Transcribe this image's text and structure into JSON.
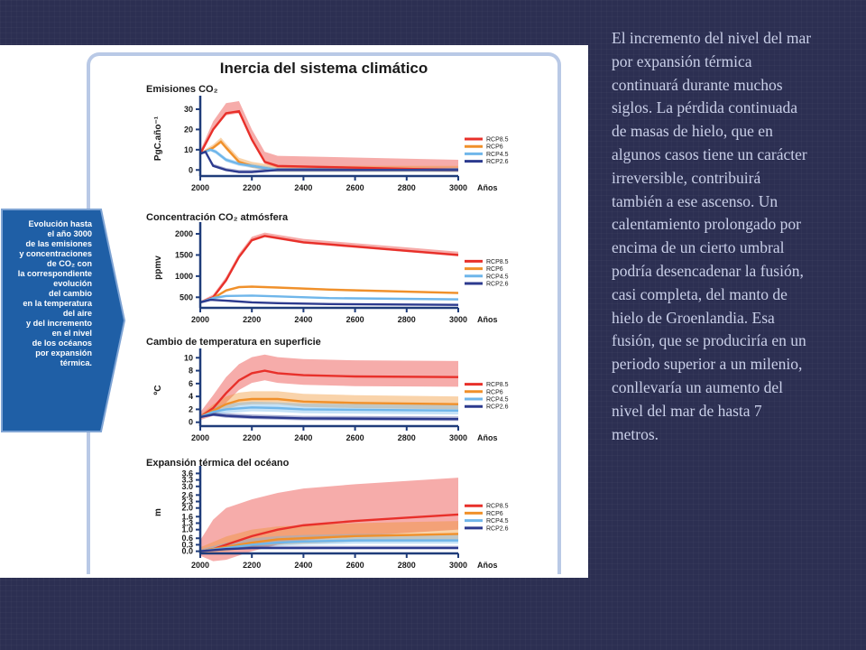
{
  "figure": {
    "title": "Inercia del sistema climático",
    "side_text": "Evolución hasta\nel año 3000\nde las emisiones\ny concentraciones\nde CO₂ con\nla correspondiente\nevolución\ndel cambio\nen la temperatura\ndel aire\ny del incremento\nen el nivel\nde los océanos\npor expansión\ntérmica."
  },
  "caption": "El incremento del nivel del mar por expansión térmica continuará durante muchos siglos. La pérdida continuada de masas de hielo, que en algunos casos tiene un carácter irreversible, contribuirá también a ese ascenso. Un calentamiento prolongado por encima de un cierto umbral podría desencadenar la fusión, casi completa, del manto de hielo de Groenlandia. Esa fusión, que se produciría en un periodo superior a un milenio, conllevaría un aumento del nivel del mar de hasta 7 metros.",
  "colors": {
    "RCP8.5": "#e8302a",
    "RCP6": "#f0902a",
    "RCP4.5": "#6fb6ea",
    "RCP2.6": "#2c3a8e",
    "slide_bg": "#2c2f52",
    "arrow": "#1f5fa6"
  },
  "chart_data": [
    {
      "type": "line",
      "title": "Emisiones CO₂",
      "ylabel": "PgC.año⁻¹",
      "xlabel": "Años",
      "x_ticks": [
        2000,
        2200,
        2400,
        2600,
        2800,
        3000
      ],
      "y_ticks": [
        0,
        10,
        20,
        30
      ],
      "xlim": [
        2000,
        3000
      ],
      "ylim": [
        -3,
        34
      ],
      "legend": "right",
      "series": [
        {
          "name": "RCP8.5",
          "x": [
            2000,
            2050,
            2100,
            2150,
            2200,
            2250,
            2300,
            3000
          ],
          "y": [
            8,
            20,
            28,
            29,
            15,
            4,
            2,
            0
          ],
          "band": [
            1,
            5
          ]
        },
        {
          "name": "RCP6",
          "x": [
            2000,
            2050,
            2080,
            2100,
            2150,
            2200,
            2250,
            2300,
            3000
          ],
          "y": [
            8,
            11,
            14,
            11,
            4,
            2,
            1,
            0,
            0
          ],
          "band": [
            1,
            2
          ]
        },
        {
          "name": "RCP4.5",
          "x": [
            2000,
            2040,
            2060,
            2100,
            2150,
            2200,
            2250,
            2300,
            3000
          ],
          "y": [
            8,
            10,
            9,
            5,
            3,
            2,
            1,
            0,
            0
          ],
          "band": [
            1,
            1
          ]
        },
        {
          "name": "RCP2.6",
          "x": [
            2000,
            2020,
            2050,
            2100,
            2150,
            2200,
            2300,
            3000
          ],
          "y": [
            8,
            9,
            2,
            0,
            -1,
            -1,
            0,
            0
          ],
          "band": [
            0.5,
            1
          ]
        }
      ]
    },
    {
      "type": "line",
      "title": "Concentración CO₂ atmósfera",
      "ylabel": "ppmv",
      "xlabel": "Años",
      "x_ticks": [
        2000,
        2200,
        2400,
        2600,
        2800,
        3000
      ],
      "y_ticks": [
        500,
        1000,
        1500,
        2000
      ],
      "xlim": [
        2000,
        3000
      ],
      "ylim": [
        250,
        2150
      ],
      "legend": "right",
      "series": [
        {
          "name": "RCP8.5",
          "x": [
            2000,
            2050,
            2100,
            2150,
            2200,
            2250,
            2300,
            2400,
            2500,
            2600,
            2800,
            3000
          ],
          "y": [
            380,
            500,
            900,
            1450,
            1850,
            1950,
            1900,
            1800,
            1750,
            1700,
            1600,
            1500
          ],
          "band": [
            30,
            80
          ]
        },
        {
          "name": "RCP6",
          "x": [
            2000,
            2050,
            2100,
            2150,
            2200,
            2300,
            2500,
            3000
          ],
          "y": [
            380,
            480,
            660,
            740,
            750,
            730,
            680,
            600
          ],
          "band": [
            15,
            30
          ]
        },
        {
          "name": "RCP4.5",
          "x": [
            2000,
            2050,
            2100,
            2200,
            2300,
            2500,
            3000
          ],
          "y": [
            380,
            480,
            530,
            540,
            520,
            480,
            450
          ],
          "band": [
            10,
            20
          ]
        },
        {
          "name": "RCP2.6",
          "x": [
            2000,
            2040,
            2100,
            2200,
            2300,
            2500,
            3000
          ],
          "y": [
            380,
            440,
            420,
            380,
            360,
            340,
            320
          ],
          "band": [
            5,
            10
          ]
        }
      ]
    },
    {
      "type": "line",
      "title": "Cambio de temperatura en superficie",
      "ylabel": "ºC",
      "xlabel": "Años",
      "x_ticks": [
        2000,
        2200,
        2400,
        2600,
        2800,
        3000
      ],
      "y_ticks": [
        0,
        2,
        4,
        6,
        8,
        10
      ],
      "xlim": [
        2000,
        3000
      ],
      "ylim": [
        -0.6,
        10.6
      ],
      "legend": "right",
      "series": [
        {
          "name": "RCP8.5",
          "x": [
            2000,
            2050,
            2100,
            2150,
            2200,
            2250,
            2300,
            2400,
            2600,
            3000
          ],
          "y": [
            0.8,
            2.2,
            4.5,
            6.5,
            7.6,
            8,
            7.6,
            7.3,
            7.1,
            7
          ],
          "band": [
            1.5,
            2.5
          ]
        },
        {
          "name": "RCP6",
          "x": [
            2000,
            2050,
            2100,
            2150,
            2200,
            2300,
            2400,
            2600,
            3000
          ],
          "y": [
            0.8,
            1.8,
            2.8,
            3.4,
            3.6,
            3.6,
            3.2,
            3,
            2.8
          ],
          "band": [
            0.8,
            1.2
          ]
        },
        {
          "name": "RCP4.5",
          "x": [
            2000,
            2050,
            2100,
            2200,
            2300,
            2400,
            3000
          ],
          "y": [
            0.8,
            1.6,
            2.0,
            2.3,
            2.2,
            2.0,
            1.8
          ],
          "band": [
            0.6,
            0.9
          ]
        },
        {
          "name": "RCP2.6",
          "x": [
            2000,
            2050,
            2100,
            2200,
            2300,
            2400,
            3000
          ],
          "y": [
            0.8,
            1.2,
            1.0,
            0.8,
            0.7,
            0.6,
            0.5
          ],
          "band": [
            0.3,
            0.4
          ]
        }
      ]
    },
    {
      "type": "line",
      "title": "Expansión térmica del océano",
      "ylabel": "m",
      "xlabel": "Años",
      "x_ticks": [
        2000,
        2200,
        2400,
        2600,
        2800,
        3000
      ],
      "y_ticks": [
        0.0,
        0.3,
        0.6,
        1.0,
        1.3,
        1.6,
        2.0,
        2.3,
        2.6,
        3.0,
        3.3,
        3.6
      ],
      "xlim": [
        2000,
        3000
      ],
      "ylim": [
        -0.1,
        3.7
      ],
      "legend": "right",
      "series": [
        {
          "name": "RCP8.5",
          "x": [
            2000,
            2050,
            2100,
            2200,
            2300,
            2400,
            2600,
            2800,
            3000
          ],
          "y": [
            0,
            0.1,
            0.3,
            0.7,
            1.0,
            1.2,
            1.4,
            1.55,
            1.7
          ],
          "band": [
            0.7,
            1.7
          ]
        },
        {
          "name": "RCP6",
          "x": [
            2000,
            2100,
            2200,
            2300,
            2400,
            2600,
            2800,
            3000
          ],
          "y": [
            0,
            0.2,
            0.4,
            0.55,
            0.6,
            0.7,
            0.75,
            0.8
          ],
          "band": [
            0.25,
            0.6
          ]
        },
        {
          "name": "RCP4.5",
          "x": [
            2000,
            2100,
            2200,
            2300,
            2400,
            2600,
            2800,
            3000
          ],
          "y": [
            0,
            0.15,
            0.3,
            0.4,
            0.45,
            0.5,
            0.5,
            0.5
          ],
          "band": [
            0.15,
            0.3
          ]
        },
        {
          "name": "RCP2.6",
          "x": [
            2000,
            2100,
            2200,
            2300,
            2400,
            2600,
            2800,
            3000
          ],
          "y": [
            0,
            0.1,
            0.15,
            0.15,
            0.15,
            0.15,
            0.15,
            0.15
          ],
          "band": [
            0.05,
            0.1
          ]
        }
      ]
    }
  ]
}
